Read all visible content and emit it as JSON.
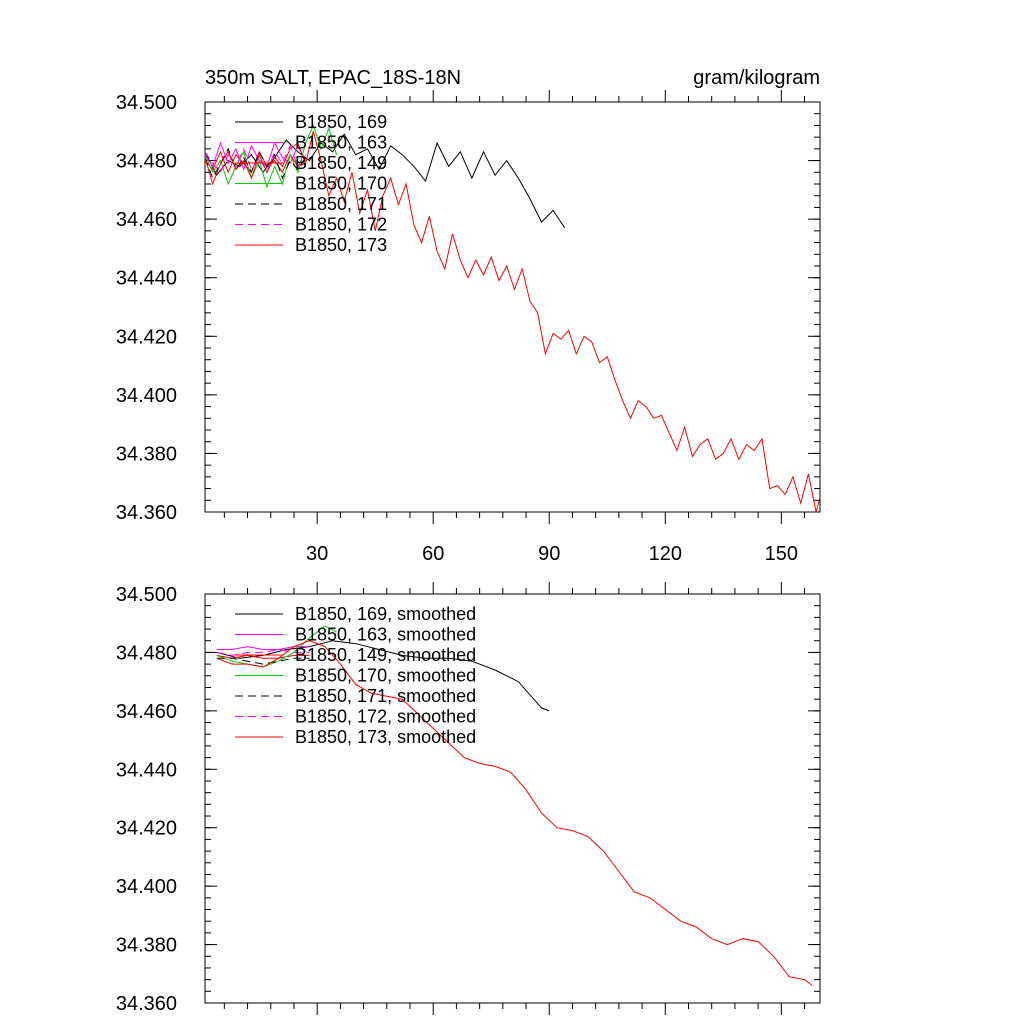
{
  "chart_data": [
    {
      "type": "line",
      "title": "350m SALT, EPAC_18S-18N",
      "units": "gram/kilogram",
      "xlim": [
        1,
        160
      ],
      "ylim": [
        34.36,
        34.5
      ],
      "y_ticks": [
        "34.360",
        "34.380",
        "34.400",
        "34.420",
        "34.440",
        "34.460",
        "34.480",
        "34.500"
      ],
      "x_ticks": [
        "30",
        "60",
        "90",
        "120",
        "150"
      ],
      "legend_position": "top-left",
      "series": [
        {
          "name": "B1850, 169",
          "color": "#000000",
          "dash": "solid",
          "x": [
            1,
            4,
            7,
            10,
            13,
            16,
            19,
            22,
            25,
            28,
            31,
            34,
            37,
            40,
            43,
            46,
            49,
            52,
            55,
            58,
            61,
            64,
            67,
            70,
            73,
            76,
            79,
            82,
            85,
            88,
            91,
            94
          ],
          "y": [
            34.483,
            34.475,
            34.48,
            34.478,
            34.482,
            34.476,
            34.481,
            34.487,
            34.483,
            34.48,
            34.486,
            34.483,
            34.489,
            34.482,
            34.484,
            34.477,
            34.485,
            34.482,
            34.478,
            34.473,
            34.486,
            34.478,
            34.483,
            34.474,
            34.483,
            34.475,
            34.48,
            34.474,
            34.467,
            34.459,
            34.463,
            34.457
          ]
        },
        {
          "name": "B1850, 163",
          "color": "#ff00ff",
          "dash": "solid",
          "x": [
            1,
            3,
            5,
            7,
            9,
            11,
            13,
            15,
            17,
            19,
            21,
            23,
            25,
            27
          ],
          "y": [
            34.482,
            34.478,
            34.486,
            34.479,
            34.484,
            34.477,
            34.485,
            34.48,
            34.478,
            34.486,
            34.481,
            34.479,
            34.485,
            34.48
          ]
        },
        {
          "name": "B1850, 149",
          "color": "#ff0000",
          "dash": "solid",
          "x": [
            1,
            3,
            5,
            7,
            9,
            11,
            13,
            15,
            17,
            19,
            21,
            23,
            25,
            27
          ],
          "y": [
            34.48,
            34.477,
            34.483,
            34.476,
            34.482,
            34.479,
            34.476,
            34.483,
            34.478,
            34.48,
            34.476,
            34.482,
            34.478,
            34.479
          ]
        },
        {
          "name": "B1850, 170",
          "color": "#00cc00",
          "dash": "solid",
          "x": [
            1,
            3,
            5,
            7,
            9,
            11,
            13,
            15,
            17,
            19,
            21,
            23,
            25,
            27,
            29,
            31,
            33,
            35
          ],
          "y": [
            34.482,
            34.476,
            34.48,
            34.472,
            34.478,
            34.483,
            34.474,
            34.48,
            34.471,
            34.478,
            34.472,
            34.482,
            34.476,
            34.486,
            34.492,
            34.484,
            34.491,
            34.482
          ]
        },
        {
          "name": "B1850, 171",
          "color": "#000000",
          "dash": "dashed",
          "x": [
            1,
            3,
            5,
            7,
            9,
            11,
            13,
            15,
            17,
            19,
            21,
            23,
            25,
            27
          ],
          "y": [
            34.481,
            34.474,
            34.479,
            34.484,
            34.477,
            34.481,
            34.476,
            34.483,
            34.478,
            34.482,
            34.474,
            34.48,
            34.477,
            34.481
          ]
        },
        {
          "name": "B1850, 172",
          "color": "#ff00ff",
          "dash": "dashed",
          "x": [
            1,
            3,
            5,
            7,
            9,
            11,
            13,
            15,
            17,
            19,
            21,
            23,
            25,
            27
          ],
          "y": [
            34.483,
            34.479,
            34.476,
            34.482,
            34.478,
            34.484,
            34.477,
            34.481,
            34.476,
            34.483,
            34.479,
            34.485,
            34.478,
            34.482
          ]
        },
        {
          "name": "B1850, 173",
          "color": "#ff0000",
          "dash": "solid",
          "x": [
            1,
            3,
            5,
            7,
            9,
            11,
            13,
            15,
            17,
            19,
            21,
            23,
            25,
            27,
            29,
            31,
            33,
            35,
            37,
            39,
            41,
            43,
            45,
            47,
            49,
            51,
            53,
            55,
            57,
            59,
            61,
            63,
            65,
            67,
            69,
            71,
            73,
            75,
            77,
            79,
            81,
            83,
            85,
            87,
            89,
            91,
            93,
            95,
            97,
            99,
            101,
            103,
            105,
            107,
            109,
            111,
            113,
            115,
            117,
            119,
            121,
            123,
            125,
            127,
            129,
            131,
            133,
            135,
            137,
            139,
            141,
            143,
            145,
            147,
            149,
            151,
            153,
            155,
            157,
            159,
            160
          ],
          "y": [
            34.481,
            34.472,
            34.479,
            34.483,
            34.477,
            34.48,
            34.474,
            34.482,
            34.476,
            34.481,
            34.478,
            34.484,
            34.486,
            34.479,
            34.49,
            34.48,
            34.468,
            34.474,
            34.466,
            34.476,
            34.462,
            34.47,
            34.456,
            34.468,
            34.474,
            34.465,
            34.472,
            34.458,
            34.452,
            34.461,
            34.449,
            34.443,
            34.455,
            34.446,
            34.44,
            34.446,
            34.441,
            34.447,
            34.439,
            34.444,
            34.436,
            34.443,
            34.432,
            34.428,
            34.414,
            34.421,
            34.419,
            34.422,
            34.414,
            34.42,
            34.418,
            34.411,
            34.413,
            34.405,
            34.398,
            34.392,
            34.398,
            34.396,
            34.392,
            34.393,
            34.387,
            34.381,
            34.389,
            34.379,
            34.383,
            34.385,
            34.378,
            34.38,
            34.385,
            34.378,
            34.383,
            34.381,
            34.385,
            34.368,
            34.369,
            34.366,
            34.372,
            34.363,
            34.373,
            34.36,
            34.365
          ]
        }
      ]
    },
    {
      "type": "line",
      "xlim": [
        1,
        160
      ],
      "ylim": [
        34.36,
        34.5
      ],
      "y_ticks": [
        "34.360",
        "34.380",
        "34.400",
        "34.420",
        "34.440",
        "34.460",
        "34.480",
        "34.500"
      ],
      "legend_position": "top-left",
      "series": [
        {
          "name": "B1850, 169, smoothed",
          "color": "#000000",
          "dash": "solid",
          "x": [
            4,
            10,
            16,
            22,
            28,
            34,
            40,
            46,
            52,
            58,
            64,
            70,
            76,
            82,
            86,
            88,
            90
          ],
          "y": [
            34.48,
            34.478,
            34.479,
            34.481,
            34.482,
            34.484,
            34.483,
            34.481,
            34.479,
            34.478,
            34.478,
            34.477,
            34.474,
            34.47,
            34.464,
            34.461,
            34.46
          ]
        },
        {
          "name": "B1850, 163, smoothed",
          "color": "#ff00ff",
          "dash": "solid",
          "x": [
            4,
            8,
            12,
            16,
            20,
            24,
            28
          ],
          "y": [
            34.481,
            34.481,
            34.482,
            34.481,
            34.481,
            34.482,
            34.482
          ]
        },
        {
          "name": "B1850, 149, smoothed",
          "color": "#ff0000",
          "dash": "solid",
          "x": [
            4,
            8,
            12,
            16,
            20,
            24,
            28
          ],
          "y": [
            34.479,
            34.478,
            34.479,
            34.478,
            34.478,
            34.479,
            34.479
          ]
        },
        {
          "name": "B1850, 170, smoothed",
          "color": "#00cc00",
          "dash": "solid",
          "x": [
            4,
            8,
            12,
            16,
            20,
            24,
            28,
            32,
            35
          ],
          "y": [
            34.479,
            34.477,
            34.476,
            34.475,
            34.477,
            34.48,
            34.485,
            34.489,
            34.487
          ]
        },
        {
          "name": "B1850, 171, smoothed",
          "color": "#000000",
          "dash": "dashed",
          "x": [
            4,
            8,
            12,
            16,
            20,
            24,
            28
          ],
          "y": [
            34.478,
            34.478,
            34.477,
            34.476,
            34.477,
            34.478,
            34.478
          ]
        },
        {
          "name": "B1850, 172, smoothed",
          "color": "#ff00ff",
          "dash": "dashed",
          "x": [
            4,
            8,
            12,
            16,
            20,
            24,
            28
          ],
          "y": [
            34.48,
            34.479,
            34.48,
            34.48,
            34.481,
            34.48,
            34.48
          ]
        },
        {
          "name": "B1850, 173, smoothed",
          "color": "#ff0000",
          "dash": "solid",
          "x": [
            4,
            8,
            12,
            16,
            20,
            24,
            28,
            32,
            36,
            40,
            44,
            48,
            52,
            56,
            60,
            64,
            68,
            72,
            76,
            80,
            84,
            88,
            92,
            96,
            100,
            104,
            108,
            112,
            116,
            120,
            124,
            128,
            132,
            136,
            140,
            144,
            148,
            152,
            156,
            158
          ],
          "y": [
            34.478,
            34.476,
            34.476,
            34.475,
            34.478,
            34.482,
            34.484,
            34.482,
            34.476,
            34.469,
            34.466,
            34.465,
            34.464,
            34.459,
            34.454,
            34.449,
            34.444,
            34.442,
            34.441,
            34.439,
            34.433,
            34.425,
            34.42,
            34.419,
            34.417,
            34.412,
            34.405,
            34.398,
            34.396,
            34.392,
            34.388,
            34.386,
            34.382,
            34.38,
            34.382,
            34.381,
            34.376,
            34.369,
            34.368,
            34.366
          ]
        }
      ]
    }
  ]
}
